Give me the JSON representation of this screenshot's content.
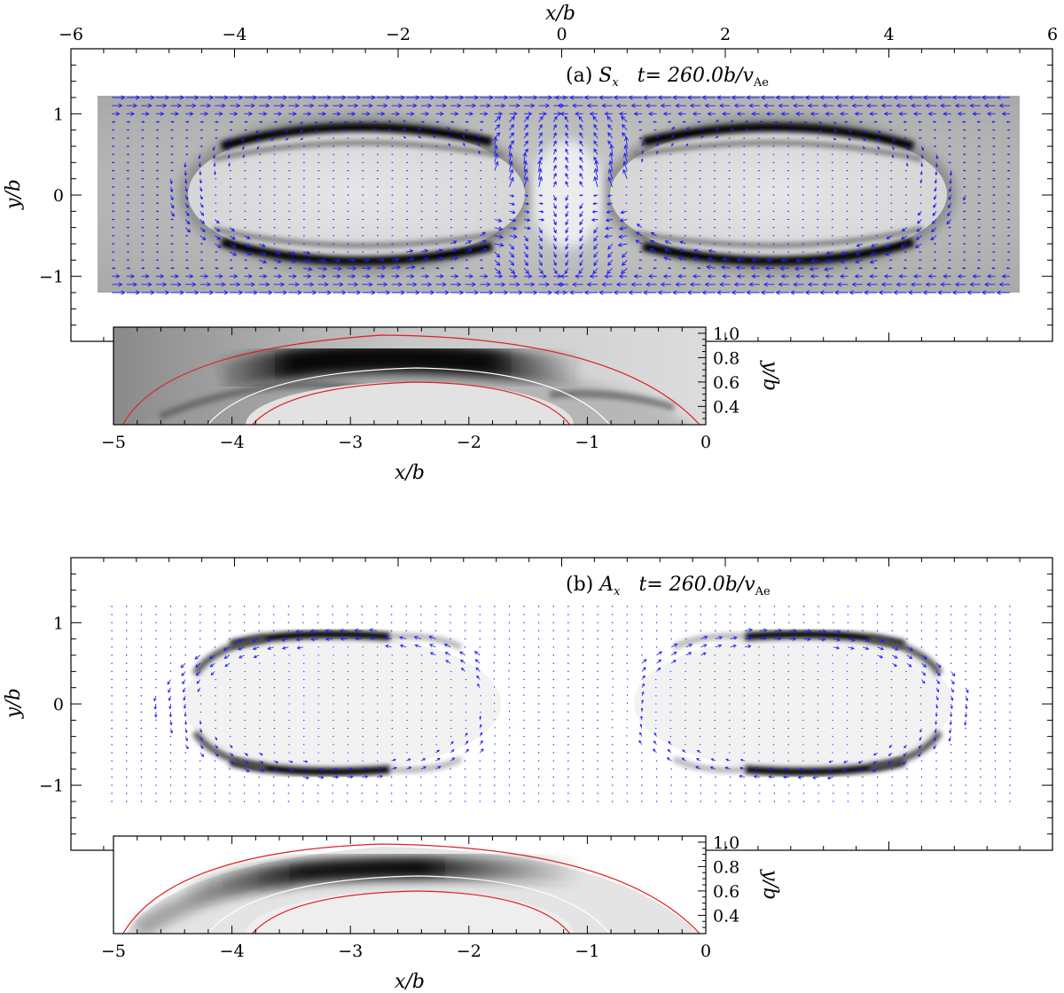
{
  "chart_data": [
    {
      "panel": "a",
      "type": "heatmap",
      "title": "(a) S_x   t= 260.0b/v_Ae",
      "title_parts": {
        "tag": "(a)",
        "sym": "S",
        "sym_sub": "x",
        "time_text": "t= 260.0b/",
        "v": "v",
        "v_sub": "Ae"
      },
      "xlabel": "x/b",
      "ylabel": "y/b",
      "xlim": [
        -6,
        6
      ],
      "ylim": [
        -1.8,
        1.8
      ],
      "x_ticks": [
        "−6",
        "−4",
        "−2",
        "0",
        "2",
        "4",
        "6"
      ],
      "y_ticks": [
        "1",
        "0",
        "−1"
      ],
      "x_tick_values": [
        -6,
        -4,
        -2,
        0,
        2,
        4,
        6
      ],
      "y_tick_values": [
        1,
        0,
        -1
      ],
      "colormap": "greyscale",
      "vector_field_color": "#1a1aff",
      "vector_field": "strong inflow along x toward x=0 on the outer layers, circulating around the two elliptical structures",
      "inset": {
        "xlabel": "x/b",
        "ylabel": "y/b",
        "xlim": [
          -5,
          0
        ],
        "ylim": [
          0.25,
          1.05
        ],
        "x_ticks": [
          "−5",
          "−4",
          "−3",
          "−2",
          "−1",
          "0"
        ],
        "y_ticks": [
          "1.0",
          "0.8",
          "0.6",
          "0.4"
        ],
        "x_tick_values": [
          -5,
          -4,
          -3,
          -2,
          -1,
          0
        ],
        "y_tick_values": [
          1.0,
          0.8,
          0.6,
          0.4
        ],
        "contour_colors": {
          "outer": "#e02020",
          "middle": "#ffffff",
          "inner": "#e02020"
        }
      }
    },
    {
      "panel": "b",
      "type": "heatmap",
      "title": "(b) A_x   t= 260.0b/v_Ae",
      "title_parts": {
        "tag": "(b)",
        "sym": "A",
        "sym_sub": "x",
        "time_text": "t= 260.0b/",
        "v": "v",
        "v_sub": "Ae"
      },
      "xlabel": "",
      "ylabel": "y/b",
      "xlim": [
        -6,
        6
      ],
      "ylim": [
        -1.8,
        1.8
      ],
      "x_ticks": [],
      "y_ticks": [
        "1",
        "0",
        "−1"
      ],
      "y_tick_values": [
        1,
        0,
        -1
      ],
      "colormap": "greyscale",
      "vector_field_color": "#1a1aff",
      "vector_field": "weak small arrows, circulation concentrated at the ends of the two elliptical structures",
      "inset": {
        "xlabel": "x/b",
        "ylabel": "y/b",
        "xlim": [
          -5,
          0
        ],
        "ylim": [
          0.25,
          1.05
        ],
        "x_ticks": [
          "−5",
          "−4",
          "−3",
          "−2",
          "−1",
          "0"
        ],
        "y_ticks": [
          "1.0",
          "0.8",
          "0.6",
          "0.4"
        ],
        "x_tick_values": [
          -5,
          -4,
          -3,
          -2,
          -1,
          0
        ],
        "y_tick_values": [
          1.0,
          0.8,
          0.6,
          0.4
        ],
        "contour_colors": {
          "outer": "#e02020",
          "middle": "#ffffff",
          "inner": "#e02020"
        }
      }
    }
  ]
}
